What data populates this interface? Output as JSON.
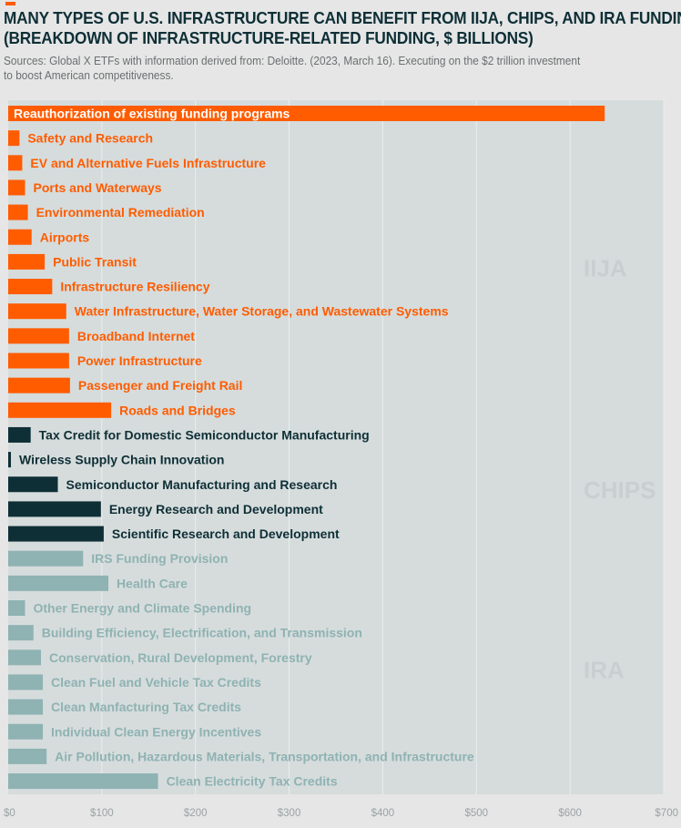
{
  "header": {
    "title_line1": "MANY TYPES OF U.S. INFRASTRUCTURE CAN BENEFIT FROM IIJA, CHIPS, AND IRA FUNDING",
    "title_line2": "(BREAKDOWN OF INFRASTRUCTURE-RELATED FUNDING, $ BILLIONS)",
    "source_line1": "Sources: Global X ETFs with information derived from: Deloitte. (2023, March 16). Executing on the $2 trillion investment",
    "source_line2": "to boost American competitiveness."
  },
  "colors": {
    "background": "#e6e6e6",
    "panel": "#d6dcdc",
    "IIJA": "#ff5c00",
    "CHIPS": "#0e2f36",
    "IRA": "#8fb2b3",
    "group_label": "#c9cfd0"
  },
  "chart_data": {
    "type": "bar",
    "orientation": "horizontal",
    "title": "MANY TYPES OF U.S. INFRASTRUCTURE CAN BENEFIT FROM IIJA, CHIPS, AND IRA FUNDING",
    "subtitle": "(BREAKDOWN OF INFRASTRUCTURE-RELATED FUNDING, $ BILLIONS)",
    "xlabel": "",
    "ylabel": "",
    "xlim": [
      0,
      700
    ],
    "ticks": [
      0,
      100,
      200,
      300,
      400,
      500,
      600,
      700
    ],
    "tick_labels": [
      "$0",
      "$100",
      "$200",
      "$300",
      "$400",
      "$500",
      "$600",
      "$700"
    ],
    "grid": true,
    "groups": [
      {
        "name": "IIJA",
        "bars": [
          {
            "label": "Reauthorization of existing funding programs",
            "value": 637
          },
          {
            "label": "Safety and Research",
            "value": 12
          },
          {
            "label": "EV and Alternative Fuels Infrastructure",
            "value": 15
          },
          {
            "label": "Ports and Waterways",
            "value": 18
          },
          {
            "label": "Environmental Remediation",
            "value": 21
          },
          {
            "label": "Airports",
            "value": 25
          },
          {
            "label": "Public Transit",
            "value": 39
          },
          {
            "label": "Infrastructure Resiliency",
            "value": 47
          },
          {
            "label": "Water Infrastructure, Water Storage, and Wastewater Systems",
            "value": 62
          },
          {
            "label": "Broadband Internet",
            "value": 65
          },
          {
            "label": "Power Infrastructure",
            "value": 65
          },
          {
            "label": "Passenger and Freight Rail",
            "value": 66
          },
          {
            "label": "Roads and Bridges",
            "value": 110
          }
        ]
      },
      {
        "name": "CHIPS",
        "bars": [
          {
            "label": "Tax Credit for Domestic Semiconductor Manufacturing",
            "value": 24
          },
          {
            "label": "Wireless Supply Chain Innovation",
            "value": 1.5
          },
          {
            "label": "Semiconductor Manufacturing and Research",
            "value": 53
          },
          {
            "label": "Energy Research and Development",
            "value": 99
          },
          {
            "label": "Scientific Research and Development",
            "value": 102
          }
        ]
      },
      {
        "name": "IRA",
        "bars": [
          {
            "label": "IRS Funding Provision",
            "value": 80
          },
          {
            "label": "Health Care",
            "value": 107
          },
          {
            "label": "Other Energy and Climate Spending",
            "value": 18
          },
          {
            "label": "Building Efficiency, Electrification, and Transmission",
            "value": 27
          },
          {
            "label": "Conservation, Rural Development, Forestry",
            "value": 35
          },
          {
            "label": "Clean Fuel and Vehicle Tax Credits",
            "value": 37
          },
          {
            "label": "Clean Manfacturing Tax Credits",
            "value": 37
          },
          {
            "label": "Individual Clean Energy Incentives",
            "value": 37
          },
          {
            "label": "Air Pollution, Hazardous Materials, Transportation, and Infrastructure",
            "value": 41
          },
          {
            "label": "Clean Electricity Tax Credits",
            "value": 160
          }
        ]
      }
    ]
  }
}
